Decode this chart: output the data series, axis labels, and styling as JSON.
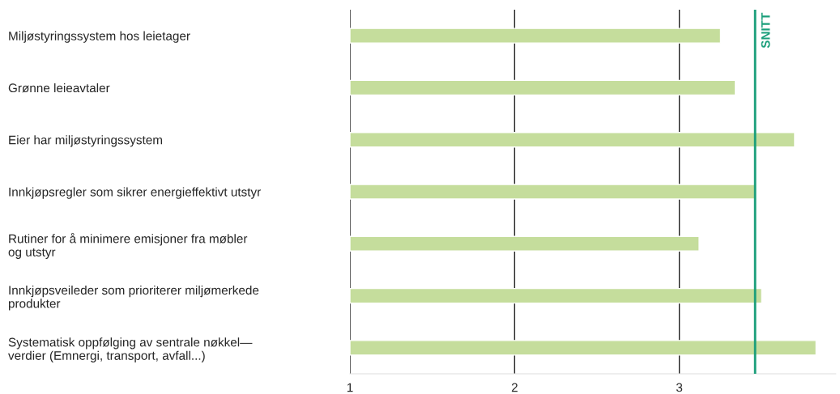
{
  "chart_data": {
    "type": "bar",
    "orientation": "horizontal",
    "categories": [
      "Miljøstyringssystem hos leietager",
      "Grønne leieavtaler",
      "Eier har miljøstyringssystem",
      "Innkjøpsregler som sikrer energieffektivt utstyr",
      "Rutiner for å minimere emisjoner fra møbler\nog utstyr",
      "Innkjøpsveileder som prioriterer miljømerkede\nprodukter",
      "Systematisk oppfølging av sentrale nøkkel—\nverdier (Emnergi, transport, avfall...)"
    ],
    "base": [
      1,
      1,
      1,
      1,
      1,
      1,
      1
    ],
    "values": [
      2.25,
      2.34,
      2.7,
      2.46,
      2.12,
      2.5,
      2.83
    ],
    "color": "#c5dd9c",
    "xlim": [
      1,
      3.95
    ],
    "xticks": [
      1,
      2,
      3
    ],
    "grid": "x",
    "legend": false,
    "ref_lines": [
      {
        "axis": "x",
        "value": 3.46,
        "label": "SNITT",
        "color": "#1a9e7a"
      }
    ]
  }
}
